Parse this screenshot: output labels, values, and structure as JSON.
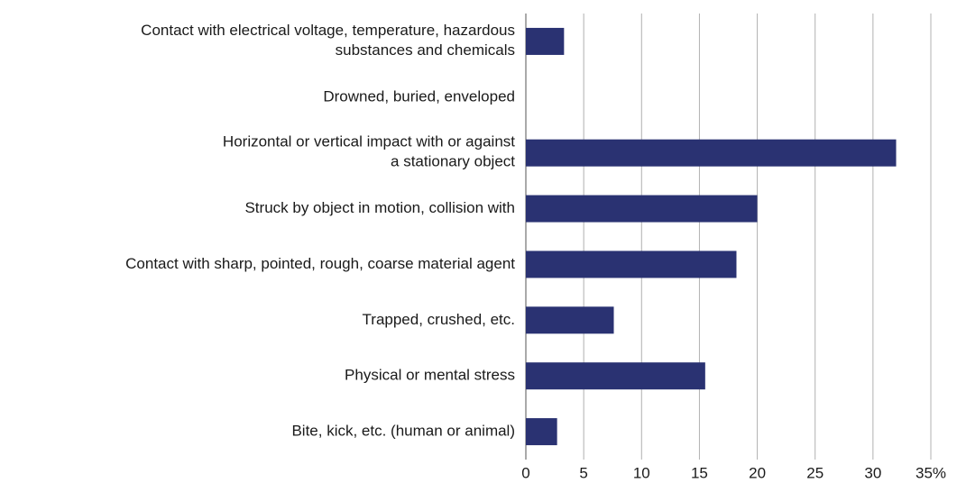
{
  "chart_data": {
    "type": "barh",
    "categories": [
      "Contact with electrical voltage, temperature, hazardous\nsubstances and chemicals",
      "Drowned, buried, enveloped",
      "Horizontal or vertical impact with or against\na stationary object",
      "Struck by object in motion, collision with",
      "Contact with sharp, pointed, rough, coarse material agent",
      "Trapped, crushed, etc.",
      "Physical or mental stress",
      "Bite, kick, etc. (human or animal)"
    ],
    "values": [
      3.3,
      0,
      32.0,
      20.0,
      18.2,
      7.6,
      15.5,
      2.7
    ],
    "color": "#2a3272",
    "xlim": [
      0,
      35
    ],
    "xticks": [
      0,
      5,
      10,
      15,
      20,
      25,
      30,
      {
        "value": 35,
        "label": "35%"
      }
    ],
    "grid": true
  }
}
